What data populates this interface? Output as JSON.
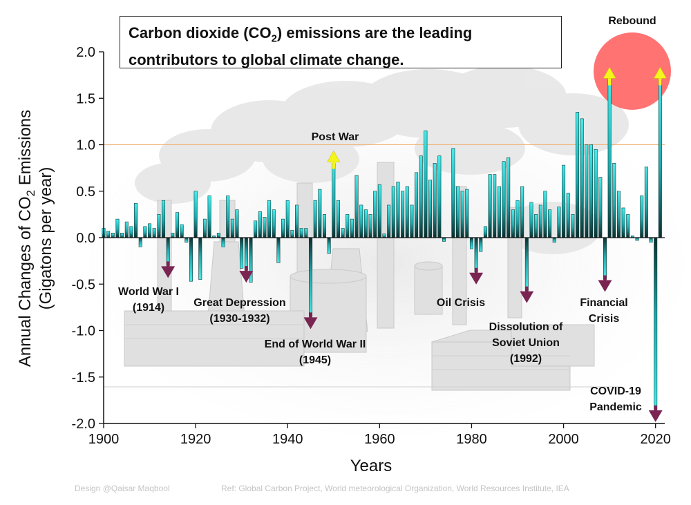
{
  "title": {
    "line1_pre": "Carbon dioxide (CO",
    "line1_sub": "2",
    "line1_post": ") emissions are the leading",
    "line2": "contributors to global climate change."
  },
  "footer": {
    "design": "Design @Qaisar Maqbool",
    "ref": "Ref: Global Carbon Project, World meteorological Organization, World Resources Institute, IEA"
  },
  "colors": {
    "bar_top": "#40e3e3",
    "bar_bottom": "#0b2d2d",
    "up_arrow": "#f5f51e",
    "down_arrow": "#7a2452",
    "reference_line": "#f0b070",
    "rebound_circle": "#ff6b6b"
  },
  "chart_data": {
    "type": "bar",
    "title": "Carbon dioxide (CO2) emissions are the leading contributors to global climate change.",
    "xlabel": "Years",
    "ylabel_line1_pre": "Annual Changes of CO",
    "ylabel_line1_sub": "2",
    "ylabel_line1_post": " Emissions",
    "ylabel_line2": "(Gigatons per year)",
    "xlim": [
      1900,
      2022
    ],
    "ylim": [
      -2.0,
      2.0
    ],
    "xticks": [
      1900,
      1920,
      1940,
      1960,
      1980,
      2000,
      2020
    ],
    "yticks": [
      "2.0",
      "1.5",
      "1.0",
      "0.5",
      "0.0",
      "-0.5",
      "-1.0",
      "-1.5",
      "-2.0"
    ],
    "reference_line": 1.0,
    "years": [
      1900,
      1901,
      1902,
      1903,
      1904,
      1905,
      1906,
      1907,
      1908,
      1909,
      1910,
      1911,
      1912,
      1913,
      1914,
      1915,
      1916,
      1917,
      1918,
      1919,
      1920,
      1921,
      1922,
      1923,
      1924,
      1925,
      1926,
      1927,
      1928,
      1929,
      1930,
      1931,
      1932,
      1933,
      1934,
      1935,
      1936,
      1937,
      1938,
      1939,
      1940,
      1941,
      1942,
      1943,
      1944,
      1945,
      1946,
      1947,
      1948,
      1949,
      1950,
      1951,
      1952,
      1953,
      1954,
      1955,
      1956,
      1957,
      1958,
      1959,
      1960,
      1961,
      1962,
      1963,
      1964,
      1965,
      1966,
      1967,
      1968,
      1969,
      1970,
      1971,
      1972,
      1973,
      1974,
      1975,
      1976,
      1977,
      1978,
      1979,
      1980,
      1981,
      1982,
      1983,
      1984,
      1985,
      1986,
      1987,
      1988,
      1989,
      1990,
      1991,
      1992,
      1993,
      1994,
      1995,
      1996,
      1997,
      1998,
      1999,
      2000,
      2001,
      2002,
      2003,
      2004,
      2005,
      2006,
      2007,
      2008,
      2009,
      2010,
      2011,
      2012,
      2013,
      2014,
      2015,
      2016,
      2017,
      2018,
      2019,
      2020,
      2021
    ],
    "values": [
      0.1,
      0.07,
      0.05,
      0.2,
      0.05,
      0.17,
      0.12,
      0.37,
      -0.1,
      0.12,
      0.15,
      0.1,
      0.25,
      0.4,
      -0.3,
      0.05,
      0.27,
      0.14,
      -0.05,
      -0.47,
      0.5,
      -0.45,
      0.2,
      0.45,
      0.02,
      0.05,
      -0.1,
      0.45,
      0.2,
      0.3,
      -0.33,
      -0.35,
      -0.48,
      0.18,
      0.28,
      0.22,
      0.4,
      0.3,
      -0.27,
      0.2,
      0.4,
      0.08,
      0.35,
      0.1,
      0.1,
      -0.85,
      0.4,
      0.52,
      0.25,
      -0.17,
      0.8,
      0.4,
      0.1,
      0.25,
      0.2,
      0.67,
      0.35,
      0.3,
      0.25,
      0.5,
      0.57,
      0.04,
      0.35,
      0.55,
      0.6,
      0.5,
      0.55,
      0.35,
      0.7,
      0.88,
      1.15,
      0.62,
      0.8,
      0.88,
      -0.04,
      0.0,
      0.96,
      0.55,
      0.5,
      0.52,
      -0.12,
      -0.37,
      -0.15,
      0.12,
      0.68,
      0.68,
      0.55,
      0.82,
      0.86,
      0.3,
      0.4,
      0.55,
      -0.57,
      0.38,
      0.25,
      0.35,
      0.5,
      0.3,
      -0.05,
      0.33,
      0.78,
      0.48,
      0.25,
      1.35,
      1.28,
      1.0,
      1.0,
      0.95,
      0.65,
      -0.45,
      1.7,
      0.8,
      0.5,
      0.32,
      0.25,
      0.02,
      -0.03,
      0.45,
      0.76,
      -0.05,
      -1.85,
      1.7
    ],
    "annotations": [
      {
        "text": "Post War",
        "lines": [
          "Post War"
        ],
        "year": 1950,
        "direction": "up"
      },
      {
        "text": "World War I (1914)",
        "lines": [
          "World War I",
          "(1914)"
        ],
        "year": 1914,
        "direction": "down"
      },
      {
        "text": "Great Depression (1930-1932)",
        "lines": [
          "Great Depression",
          "(1930-1932)"
        ],
        "year": 1931,
        "direction": "down"
      },
      {
        "text": "End of World War II (1945)",
        "lines": [
          "End of World War II",
          "(1945)"
        ],
        "year": 1945,
        "direction": "down"
      },
      {
        "text": "Oil Crisis",
        "lines": [
          "Oil Crisis"
        ],
        "year": 1981,
        "direction": "down"
      },
      {
        "text": "Dissolution of Soviet Union (1992)",
        "lines": [
          "Dissolution of",
          "Soviet Union",
          "(1992)"
        ],
        "year": 1992,
        "direction": "down"
      },
      {
        "text": "Financial Crisis",
        "lines": [
          "Financial",
          "Crisis"
        ],
        "year": 2009,
        "direction": "down"
      },
      {
        "text": "COVID-19 Pandemic",
        "lines": [
          "COVID-19",
          "Pandemic"
        ],
        "year": 2020,
        "direction": "down"
      },
      {
        "text": "Rebound",
        "lines": [
          "Rebound"
        ],
        "year": 2010,
        "direction": "up"
      },
      {
        "text": "",
        "lines": [],
        "year": 2021,
        "direction": "up"
      }
    ]
  }
}
